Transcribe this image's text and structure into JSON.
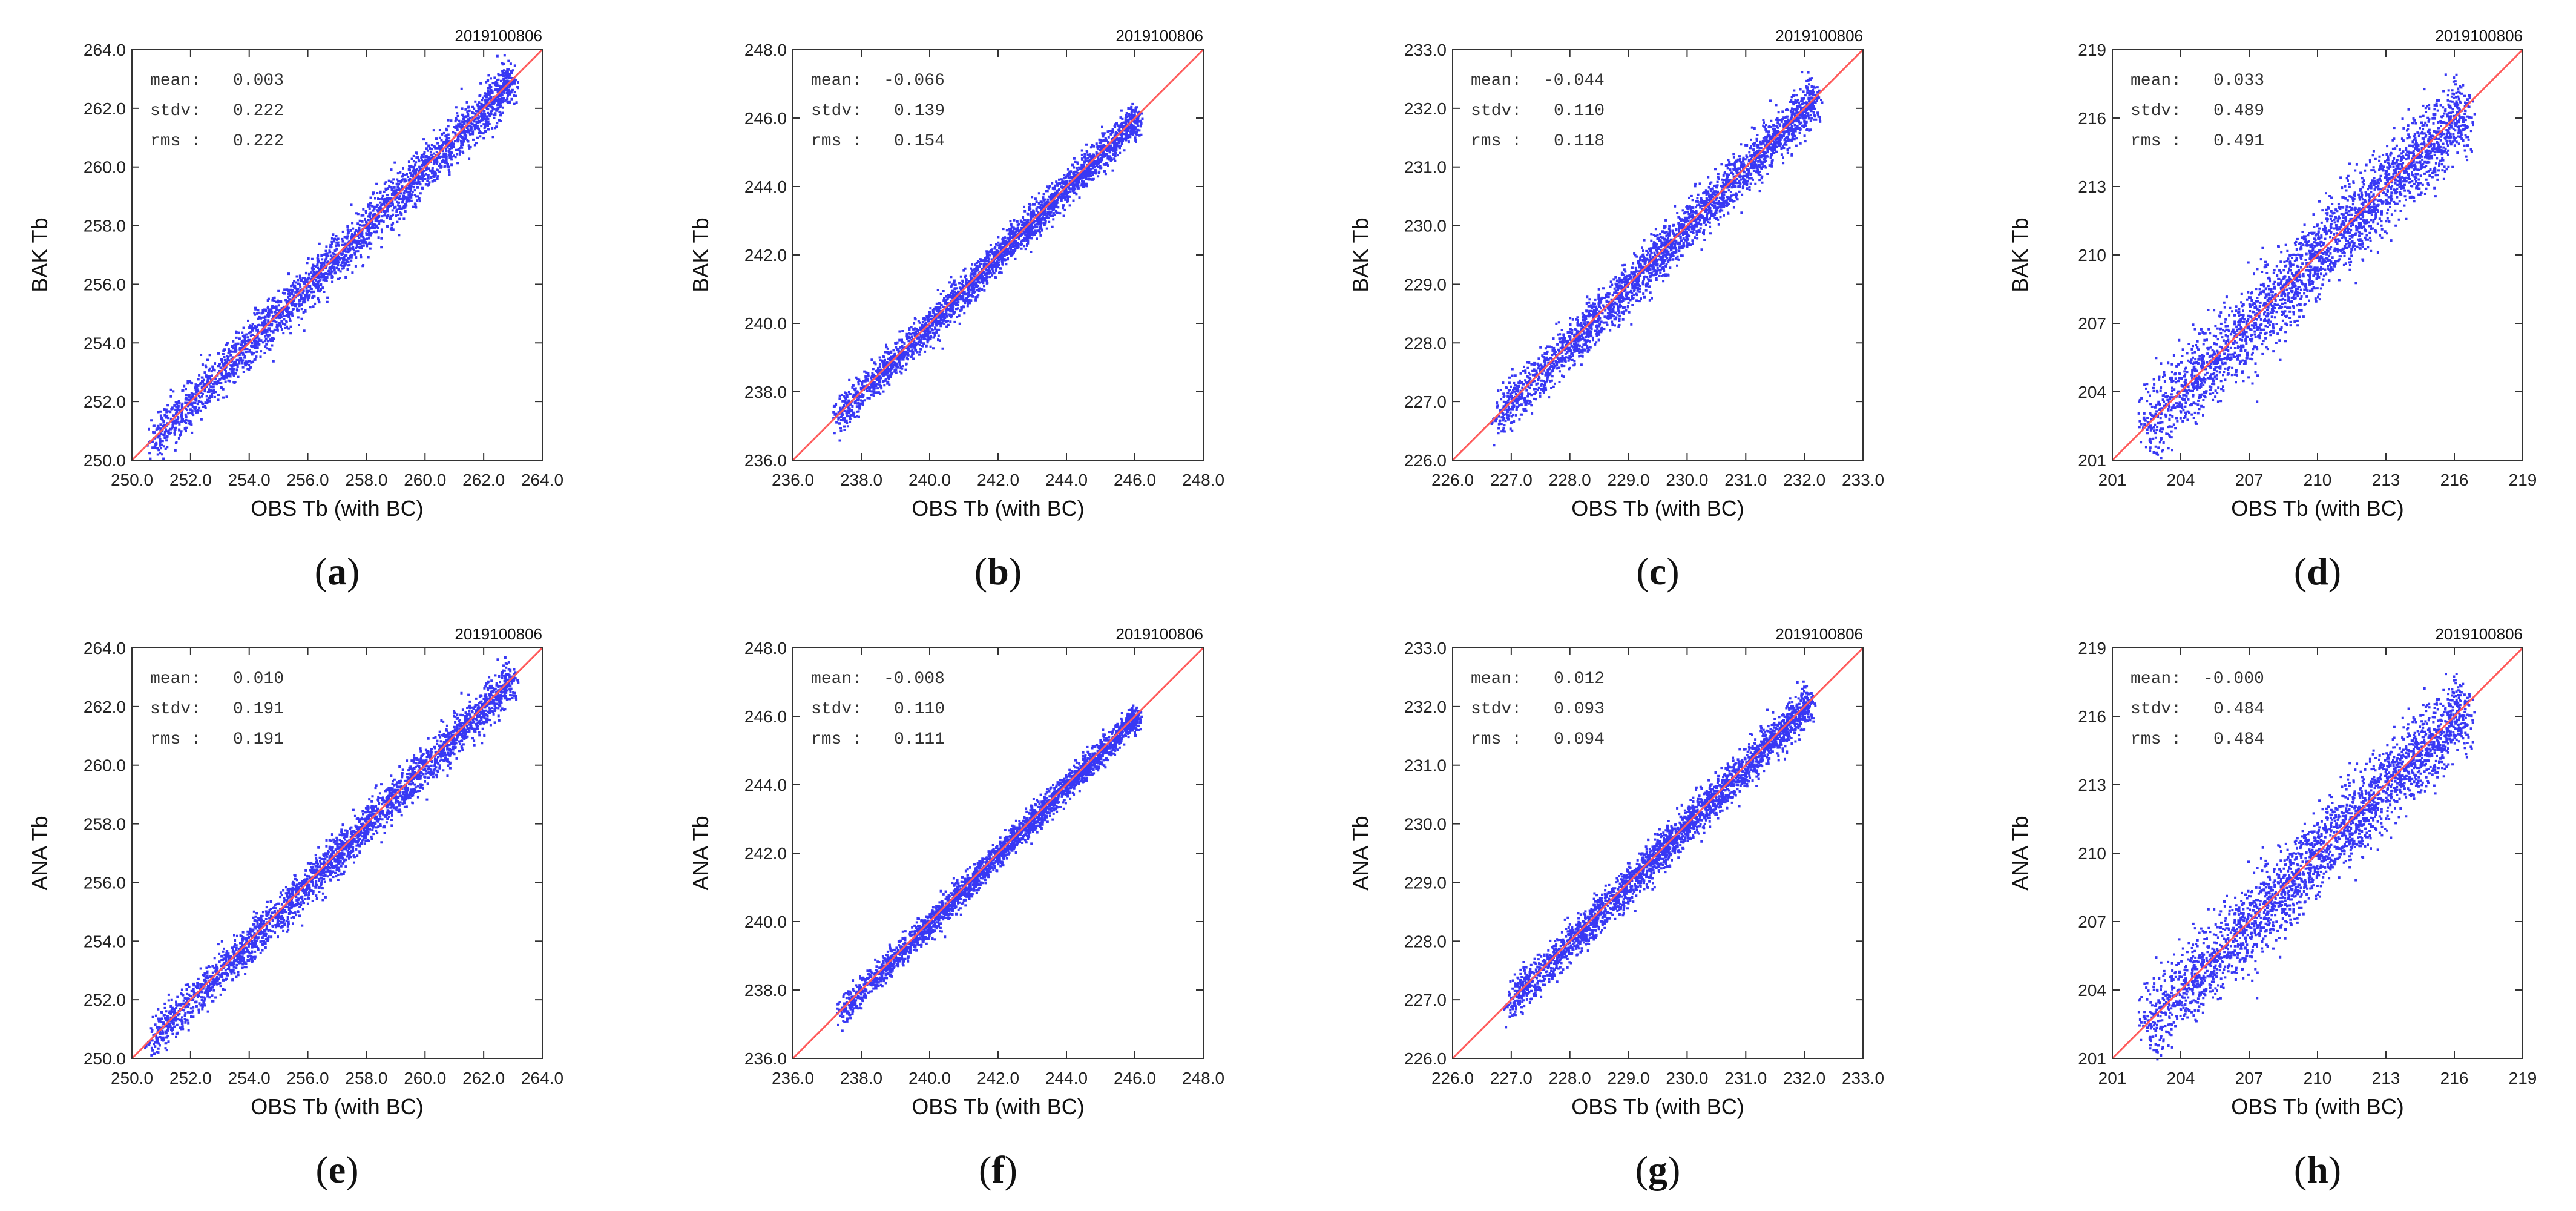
{
  "figure": {
    "point_color": "#1515f2",
    "line_color": "#ff5a5a",
    "frame_color": "#333333"
  },
  "chart_data": [
    {
      "type": "scatter",
      "panel": "a",
      "caption": "a",
      "date": "2019100806",
      "xlabel": "OBS Tb (with BC)",
      "ylabel": "BAK Tb",
      "xlim": [
        250,
        264
      ],
      "ylim": [
        250,
        264
      ],
      "xticks": [
        "250.0",
        "252.0",
        "254.0",
        "256.0",
        "258.0",
        "260.0",
        "262.0",
        "264.0"
      ],
      "yticks": [
        "250.0",
        "252.0",
        "254.0",
        "256.0",
        "258.0",
        "260.0",
        "262.0",
        "264.0"
      ],
      "data_range": [
        250.6,
        263.0
      ],
      "spread": 0.22,
      "reference_line": "y = x",
      "stats": [
        {
          "label": "mean:",
          "value": "0.003"
        },
        {
          "label": "stdv:",
          "value": "0.222"
        },
        {
          "label": "rms :",
          "value": "0.222"
        }
      ]
    },
    {
      "type": "scatter",
      "panel": "b",
      "caption": "b",
      "date": "2019100806",
      "xlabel": "OBS Tb (with BC)",
      "ylabel": "BAK Tb",
      "xlim": [
        236,
        248
      ],
      "ylim": [
        236,
        248
      ],
      "xticks": [
        "236.0",
        "238.0",
        "240.0",
        "242.0",
        "244.0",
        "246.0",
        "248.0"
      ],
      "yticks": [
        "236.0",
        "238.0",
        "240.0",
        "242.0",
        "244.0",
        "246.0",
        "248.0"
      ],
      "data_range": [
        237.2,
        246.1
      ],
      "spread": 0.14,
      "reference_line": "y = x",
      "stats": [
        {
          "label": "mean:",
          "value": "-0.066"
        },
        {
          "label": "stdv:",
          "value": "0.139"
        },
        {
          "label": "rms :",
          "value": "0.154"
        }
      ]
    },
    {
      "type": "scatter",
      "panel": "c",
      "caption": "c",
      "date": "2019100806",
      "xlabel": "OBS Tb (with BC)",
      "ylabel": "BAK Tb",
      "xlim": [
        226,
        233
      ],
      "ylim": [
        226,
        233
      ],
      "xticks": [
        "226.0",
        "227.0",
        "228.0",
        "229.0",
        "230.0",
        "231.0",
        "232.0",
        "233.0"
      ],
      "yticks": [
        "226.0",
        "227.0",
        "228.0",
        "229.0",
        "230.0",
        "231.0",
        "232.0",
        "233.0"
      ],
      "data_range": [
        226.7,
        232.2
      ],
      "spread": 0.11,
      "reference_line": "y = x",
      "stats": [
        {
          "label": "mean:",
          "value": "-0.044"
        },
        {
          "label": "stdv:",
          "value": "0.110"
        },
        {
          "label": "rms :",
          "value": "0.118"
        }
      ]
    },
    {
      "type": "scatter",
      "panel": "d",
      "caption": "d",
      "date": "2019100806",
      "xlabel": "OBS Tb (with BC)",
      "ylabel": "BAK Tb",
      "xlim": [
        201,
        219
      ],
      "ylim": [
        201,
        219
      ],
      "xticks": [
        "201",
        "204",
        "207",
        "210",
        "213",
        "216",
        "219"
      ],
      "yticks": [
        "201",
        "204",
        "207",
        "210",
        "213",
        "216",
        "219"
      ],
      "data_range": [
        202.3,
        216.5
      ],
      "spread": 0.49,
      "reference_line": "y = x",
      "stats": [
        {
          "label": "mean:",
          "value": "0.033"
        },
        {
          "label": "stdv:",
          "value": "0.489"
        },
        {
          "label": "rms :",
          "value": "0.491"
        }
      ]
    },
    {
      "type": "scatter",
      "panel": "e",
      "caption": "e",
      "date": "2019100806",
      "xlabel": "OBS Tb (with BC)",
      "ylabel": "ANA Tb",
      "xlim": [
        250,
        264
      ],
      "ylim": [
        250,
        264
      ],
      "xticks": [
        "250.0",
        "252.0",
        "254.0",
        "256.0",
        "258.0",
        "260.0",
        "262.0",
        "264.0"
      ],
      "yticks": [
        "250.0",
        "252.0",
        "254.0",
        "256.0",
        "258.0",
        "260.0",
        "262.0",
        "264.0"
      ],
      "data_range": [
        250.5,
        263.0
      ],
      "spread": 0.19,
      "reference_line": "y = x",
      "stats": [
        {
          "label": "mean:",
          "value": "0.010"
        },
        {
          "label": "stdv:",
          "value": "0.191"
        },
        {
          "label": "rms :",
          "value": "0.191"
        }
      ]
    },
    {
      "type": "scatter",
      "panel": "f",
      "caption": "f",
      "date": "2019100806",
      "xlabel": "OBS Tb (with BC)",
      "ylabel": "ANA Tb",
      "xlim": [
        236,
        248
      ],
      "ylim": [
        236,
        248
      ],
      "xticks": [
        "236.0",
        "238.0",
        "240.0",
        "242.0",
        "244.0",
        "246.0",
        "248.0"
      ],
      "yticks": [
        "236.0",
        "238.0",
        "240.0",
        "242.0",
        "244.0",
        "246.0",
        "248.0"
      ],
      "data_range": [
        237.3,
        246.1
      ],
      "spread": 0.11,
      "reference_line": "y = x",
      "stats": [
        {
          "label": "mean:",
          "value": "-0.008"
        },
        {
          "label": "stdv:",
          "value": "0.110"
        },
        {
          "label": "rms :",
          "value": "0.111"
        }
      ]
    },
    {
      "type": "scatter",
      "panel": "g",
      "caption": "g",
      "date": "2019100806",
      "xlabel": "OBS Tb (with BC)",
      "ylabel": "ANA Tb",
      "xlim": [
        226,
        233
      ],
      "ylim": [
        226,
        233
      ],
      "xticks": [
        "226.0",
        "227.0",
        "228.0",
        "229.0",
        "230.0",
        "231.0",
        "232.0",
        "233.0"
      ],
      "yticks": [
        "226.0",
        "227.0",
        "228.0",
        "229.0",
        "230.0",
        "231.0",
        "232.0",
        "233.0"
      ],
      "data_range": [
        226.9,
        232.1
      ],
      "spread": 0.09,
      "reference_line": "y = x",
      "stats": [
        {
          "label": "mean:",
          "value": "0.012"
        },
        {
          "label": "stdv:",
          "value": "0.093"
        },
        {
          "label": "rms :",
          "value": "0.094"
        }
      ]
    },
    {
      "type": "scatter",
      "panel": "h",
      "caption": "h",
      "date": "2019100806",
      "xlabel": "OBS Tb (with BC)",
      "ylabel": "ANA Tb",
      "xlim": [
        201,
        219
      ],
      "ylim": [
        201,
        219
      ],
      "xticks": [
        "201",
        "204",
        "207",
        "210",
        "213",
        "216",
        "219"
      ],
      "yticks": [
        "201",
        "204",
        "207",
        "210",
        "213",
        "216",
        "219"
      ],
      "data_range": [
        202.3,
        216.5
      ],
      "spread": 0.48,
      "reference_line": "y = x",
      "stats": [
        {
          "label": "mean:",
          "value": "-0.000"
        },
        {
          "label": "stdv:",
          "value": "0.484"
        },
        {
          "label": "rms :",
          "value": "0.484"
        }
      ]
    }
  ]
}
